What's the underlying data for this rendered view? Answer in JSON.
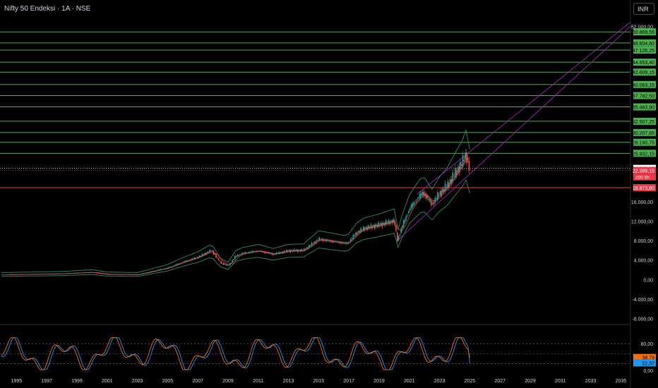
{
  "header": {
    "title": "Nifty 50 Endeksi · 1A · NSE",
    "currency_button": "INR"
  },
  "colors": {
    "background": "#000000",
    "resistance_line": "#4caf50",
    "support_line": "#f23645",
    "price_label_bg": "#4caf50",
    "candle_up": "#26a69a",
    "candle_down": "#ef5350",
    "bb_upper": "#2e7d5b",
    "bb_basis": "#f23645",
    "bb_lower": "#2e7d5b",
    "channel": "#9c27b0",
    "stoch_k": "#2196f3",
    "stoch_d": "#ff6d00",
    "axis_text": "#d1d4dc"
  },
  "chart_data": [
    {
      "type": "line",
      "subtype": "candlestick-monthly",
      "title": "Nifty 50 Endeksi · 1A · NSE",
      "x_tick_labels": [
        "1995",
        "1997",
        "1999",
        "2001",
        "2003",
        "2005",
        "2007",
        "2009",
        "2011",
        "2013",
        "2015",
        "2017",
        "2019",
        "2021",
        "2023",
        "2025",
        "2027",
        "2029",
        "2031",
        "2033",
        "2035"
      ],
      "y_tick_labels": [
        "52.000,00",
        "16.000,00",
        "12.000,00",
        "8.000,00",
        "4.000,00",
        "0,00",
        "-4.000,00",
        "-8.000,00"
      ],
      "xlim": [
        1994.0,
        2035.0
      ],
      "ylim": [
        -8000,
        52000
      ],
      "series": [
        {
          "x": [
            1994.0,
            1996.0,
            1998.0,
            2000.0,
            2001.0,
            2003.0,
            2004.0,
            2005.0,
            2006.0,
            2007.0,
            2007.9,
            2008.5,
            2009.0,
            2009.5,
            2010.0,
            2011.0,
            2012.0,
            2013.0,
            2014.0,
            2015.0,
            2016.0,
            2016.9,
            2017.5,
            2018.0,
            2019.0,
            2020.0,
            2020.2,
            2020.5,
            2021.0,
            2021.5,
            2021.9,
            2022.5,
            2023.0,
            2023.5,
            2024.0,
            2024.5,
            2024.75,
            2025.0
          ],
          "values": [
            1000,
            1100,
            1200,
            1500,
            1100,
            1000,
            1700,
            2400,
            3600,
            4600,
            6000,
            3500,
            2800,
            4800,
            5400,
            5900,
            5200,
            5900,
            6000,
            8300,
            7800,
            7400,
            9600,
            10500,
            11200,
            12100,
            8000,
            10800,
            14500,
            16500,
            17900,
            15500,
            17700,
            19200,
            21700,
            24000,
            25800,
            22400
          ]
        }
      ],
      "annotations": [
        "50.869,55",
        "48.604,60",
        "47.126,25",
        "44.653,40",
        "42.609,15",
        "40.063,15",
        "37.782,50",
        "35.463,90",
        "32.507,25",
        "30.207,65",
        "28.190,75",
        "25.932,15",
        "22.839,25",
        "22.399,15",
        "200 5h",
        "18.873,80"
      ],
      "resistance_levels": [
        50869.55,
        48604.6,
        47126.25,
        44653.4,
        42609.15,
        40063.15,
        37782.5,
        35463.9,
        32507.25,
        30207.65,
        28190.75,
        25932.15
      ],
      "support_level": 18873.8,
      "current_price": 22399.15,
      "previous_close": 22839.25,
      "countdown": "200 5h",
      "bollinger_bands": {
        "present": true
      },
      "trend_channel": {
        "present": true
      },
      "grid": false,
      "legend": "none"
    },
    {
      "type": "line",
      "subtype": "stochastic-oscillator",
      "x_tick_labels": [
        "1995",
        "1997",
        "1999",
        "2001",
        "2003",
        "2005",
        "2007",
        "2009",
        "2011",
        "2013",
        "2015",
        "2017",
        "2019",
        "2021",
        "2023",
        "2025",
        "2027",
        "2029",
        "2031",
        "2033",
        "2035"
      ],
      "y_tick_labels": [
        "80,00",
        "0,00"
      ],
      "ylim": [
        -5,
        105
      ],
      "series": [
        {
          "color": "#2196f3",
          "last_value": "22,37"
        },
        {
          "color": "#ff6d00",
          "last_value": "38,79"
        }
      ],
      "guide_levels": [
        80,
        50,
        20
      ],
      "grid": false,
      "legend": "none"
    }
  ]
}
